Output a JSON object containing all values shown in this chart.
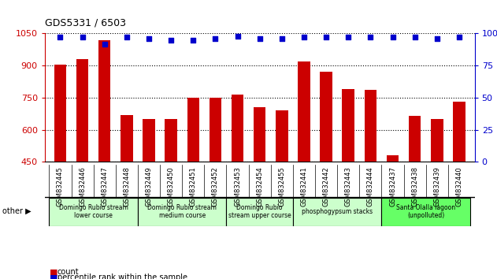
{
  "title": "GDS5331 / 6503",
  "categories": [
    "GSM832445",
    "GSM832446",
    "GSM832447",
    "GSM832448",
    "GSM832449",
    "GSM832450",
    "GSM832451",
    "GSM832452",
    "GSM832453",
    "GSM832454",
    "GSM832455",
    "GSM832441",
    "GSM832442",
    "GSM832443",
    "GSM832444",
    "GSM832437",
    "GSM832438",
    "GSM832439",
    "GSM832440"
  ],
  "counts": [
    905,
    930,
    1020,
    670,
    650,
    650,
    750,
    748,
    765,
    705,
    690,
    920,
    870,
    790,
    785,
    480,
    665,
    650,
    730
  ],
  "percentiles": [
    97,
    97,
    92,
    97,
    96,
    95,
    95,
    96,
    98,
    96,
    96,
    97,
    97,
    97,
    97,
    97,
    97,
    96,
    97
  ],
  "groups": [
    {
      "label": "Domingo Rubio stream\nlower course",
      "start": 0,
      "end": 3
    },
    {
      "label": "Domingo Rubio stream\nmedium course",
      "start": 4,
      "end": 7
    },
    {
      "label": "Domingo Rubio\nstream upper course",
      "start": 8,
      "end": 10
    },
    {
      "label": "phosphogypsum stacks",
      "start": 11,
      "end": 14
    },
    {
      "label": "Santa Olalla lagoon\n(unpolluted)",
      "start": 15,
      "end": 18
    }
  ],
  "group_colors": [
    "#ccffcc",
    "#ccffcc",
    "#ccffcc",
    "#ccffcc",
    "#66ff66"
  ],
  "ylim_left": [
    450,
    1050
  ],
  "ylim_right": [
    0,
    100
  ],
  "yticks_left": [
    450,
    600,
    750,
    900,
    1050
  ],
  "yticks_right": [
    0,
    25,
    50,
    75,
    100
  ],
  "bar_color": "#cc0000",
  "dot_color": "#0000cc",
  "bar_width": 0.55,
  "plot_bg": "#ffffff",
  "xlabel_bg": "#d8d8d8"
}
